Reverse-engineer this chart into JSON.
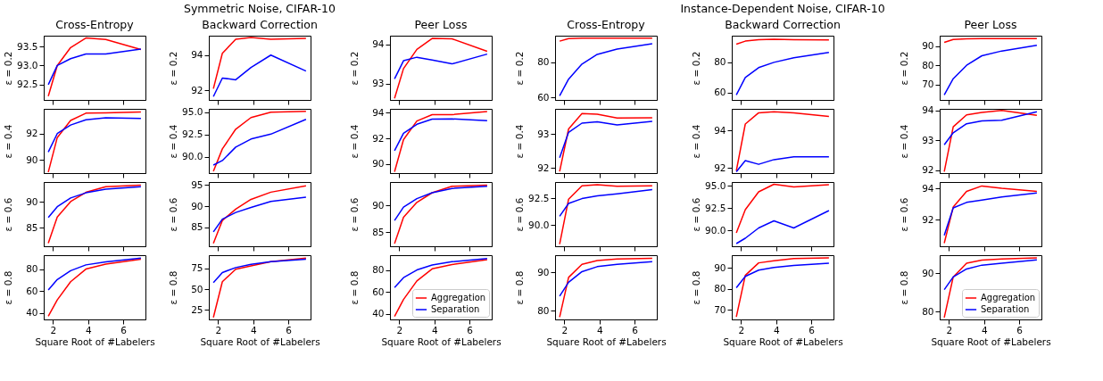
{
  "chart_data": [
    {
      "type": "line",
      "title": "Cross-Entropy",
      "ylabel": "ε = 0.2",
      "x": [
        1.73,
        2.24,
        3,
        3.87,
        5,
        7
      ],
      "xlim": [
        1.47,
        7.26
      ],
      "xticks": [
        2,
        4,
        6
      ],
      "ylim": [
        92.1,
        93.78
      ],
      "yticks": [
        92.5,
        {
          "value": 93,
          "label": "93.0"
        },
        93.5
      ],
      "tick_labels": "y",
      "line_style": "solid",
      "series": [
        {
          "color": "#ff0000",
          "values": [
            92.2,
            93.0,
            93.47,
            93.72,
            93.68,
            93.42
          ]
        },
        {
          "color": "#0000ff",
          "values": [
            92.5,
            93.0,
            93.18,
            93.3,
            93.3,
            93.43
          ]
        }
      ]
    },
    {
      "type": "line",
      "title": "Backward Correction",
      "annotations": [
        "Symmetric Noise, CIFAR-10"
      ],
      "ylabel": "ε = 0.2",
      "x": [
        1.73,
        2.24,
        3,
        3.87,
        5,
        7
      ],
      "xlim": [
        1.47,
        7.26
      ],
      "xticks": [
        2,
        4,
        6
      ],
      "ylim": [
        91.46,
        95.1
      ],
      "yticks": [
        92,
        94
      ],
      "tick_labels": "y",
      "line_style": "solid",
      "series": [
        {
          "color": "#ff0000",
          "values": [
            92.1,
            94.1,
            94.9,
            95.0,
            94.9,
            94.95
          ]
        },
        {
          "color": "#0000ff",
          "values": [
            91.65,
            92.7,
            92.6,
            93.3,
            94.0,
            93.1
          ]
        }
      ]
    },
    {
      "type": "line",
      "title": "Peer Loss",
      "ylabel": "ε = 0.2",
      "x": [
        1.73,
        2.24,
        3,
        3.87,
        5,
        7
      ],
      "xlim": [
        1.47,
        7.26
      ],
      "xticks": [
        2,
        4,
        6
      ],
      "ylim": [
        92.58,
        94.22
      ],
      "yticks": [
        93,
        94
      ],
      "tick_labels": "y",
      "line_style": "solid",
      "series": [
        {
          "color": "#ff0000",
          "values": [
            92.62,
            93.38,
            93.87,
            94.15,
            94.14,
            93.82
          ]
        },
        {
          "color": "#0000ff",
          "values": [
            93.12,
            93.58,
            93.67,
            93.6,
            93.5,
            93.75
          ]
        }
      ]
    },
    {
      "type": "line",
      "title": "Cross-Entropy",
      "ylabel": "ε = 0.2",
      "x": [
        1.73,
        2.24,
        3,
        3.87,
        5,
        7
      ],
      "xlim": [
        1.47,
        7.26
      ],
      "xticks": [
        2,
        4,
        6
      ],
      "ylim": [
        58.7,
        95.1
      ],
      "yticks": [
        60,
        80
      ],
      "tick_labels": "y",
      "line_style": "solid",
      "series": [
        {
          "color": "#ff0000",
          "values": [
            92,
            93.5,
            93.7,
            93.7,
            93.7,
            93.7
          ]
        },
        {
          "color": "#0000ff",
          "values": [
            61,
            70.5,
            79,
            84.5,
            87.5,
            90.5
          ]
        }
      ]
    },
    {
      "type": "line",
      "title": "Backward Correction",
      "annotations": [
        "Instance-Dependent Noise, CIFAR-10"
      ],
      "ylabel": "ε = 0.2",
      "x": [
        1.73,
        2.24,
        3,
        3.87,
        5,
        7
      ],
      "xlim": [
        1.47,
        7.26
      ],
      "xticks": [
        2,
        4,
        6
      ],
      "ylim": [
        55.2,
        97.6
      ],
      "yticks": [
        60,
        80
      ],
      "tick_labels": "y",
      "line_style": "solid",
      "series": [
        {
          "color": "#ff0000",
          "values": [
            92,
            94,
            95,
            95.3,
            95,
            94.8
          ]
        },
        {
          "color": "#0000ff",
          "values": [
            58.5,
            70,
            76.5,
            80,
            83,
            86.5
          ]
        }
      ]
    },
    {
      "type": "line",
      "title": "Peer Loss",
      "ylabel": "ε = 0.2",
      "x": [
        1.73,
        2.24,
        3,
        3.87,
        5,
        7
      ],
      "xlim": [
        1.47,
        7.26
      ],
      "xticks": [
        2,
        4,
        6
      ],
      "ylim": [
        61.9,
        95.5
      ],
      "yticks": [
        70,
        80,
        90
      ],
      "tick_labels": "y",
      "line_style": "solid",
      "series": [
        {
          "color": "#ff0000",
          "values": [
            92,
            93.5,
            93.9,
            94,
            94,
            94
          ]
        },
        {
          "color": "#0000ff",
          "values": [
            64.5,
            73,
            80,
            85,
            87.5,
            90.5
          ]
        }
      ]
    },
    {
      "type": "line",
      "ylabel": "ε = 0.4",
      "x": [
        1.73,
        2.24,
        3,
        3.87,
        5,
        7
      ],
      "xlim": [
        1.47,
        7.26
      ],
      "xticks": [
        2,
        4,
        6
      ],
      "ylim": [
        89.0,
        93.88
      ],
      "yticks": [
        90,
        92
      ],
      "tick_labels": "y",
      "line_style": "solid",
      "series": [
        {
          "color": "#ff0000",
          "values": [
            89.08,
            91.7,
            93.0,
            93.55,
            93.57,
            93.65
          ]
        },
        {
          "color": "#0000ff",
          "values": [
            90.6,
            92.0,
            92.65,
            93.05,
            93.2,
            93.15
          ]
        }
      ]
    },
    {
      "type": "line",
      "ylabel": "ε = 0.4",
      "x": [
        1.73,
        2.24,
        3,
        3.87,
        5,
        7
      ],
      "xlim": [
        1.47,
        7.26
      ],
      "xticks": [
        2,
        4,
        6
      ],
      "ylim": [
        88.2,
        95.37
      ],
      "yticks": [
        {
          "value": 90,
          "label": "90.0"
        },
        92.5,
        {
          "value": 95,
          "label": "95.0"
        }
      ],
      "tick_labels": "y",
      "line_style": "solid",
      "series": [
        {
          "color": "#ff0000",
          "values": [
            88.4,
            90.9,
            93.1,
            94.4,
            95.0,
            95.1
          ]
        },
        {
          "color": "#0000ff",
          "values": [
            89.1,
            89.6,
            91.1,
            92.0,
            92.55,
            94.2
          ]
        }
      ]
    },
    {
      "type": "line",
      "ylabel": "ε = 0.4",
      "x": [
        1.73,
        2.24,
        3,
        3.87,
        5,
        7
      ],
      "xlim": [
        1.47,
        7.26
      ],
      "xticks": [
        2,
        4,
        6
      ],
      "ylim": [
        89.3,
        94.3
      ],
      "yticks": [
        90,
        92,
        94
      ],
      "tick_labels": "y",
      "line_style": "solid",
      "series": [
        {
          "color": "#ff0000",
          "values": [
            89.4,
            91.9,
            93.35,
            93.85,
            93.85,
            94.1
          ]
        },
        {
          "color": "#0000ff",
          "values": [
            91.05,
            92.4,
            93.1,
            93.5,
            93.52,
            93.38
          ]
        }
      ]
    },
    {
      "type": "line",
      "ylabel": "ε = 0.4",
      "x": [
        1.73,
        2.24,
        3,
        3.87,
        5,
        7
      ],
      "xlim": [
        1.47,
        7.26
      ],
      "xticks": [
        2,
        4,
        6
      ],
      "ylim": [
        91.85,
        93.74
      ],
      "yticks": [
        92,
        93
      ],
      "tick_labels": "y",
      "line_style": "solid",
      "series": [
        {
          "color": "#ff0000",
          "values": [
            91.9,
            93.15,
            93.6,
            93.58,
            93.47,
            93.48
          ]
        },
        {
          "color": "#0000ff",
          "values": [
            92.3,
            93.05,
            93.32,
            93.36,
            93.27,
            93.37
          ]
        }
      ]
    },
    {
      "type": "line",
      "ylabel": "ε = 0.4",
      "x": [
        1.73,
        2.24,
        3,
        3.87,
        5,
        7
      ],
      "xlim": [
        1.47,
        7.26
      ],
      "xticks": [
        2,
        4,
        6
      ],
      "ylim": [
        91.73,
        95.16
      ],
      "yticks": [
        92,
        94
      ],
      "tick_labels": "y",
      "line_style": "solid",
      "series": [
        {
          "color": "#ff0000",
          "values": [
            91.85,
            94.35,
            94.95,
            95.0,
            94.95,
            94.75
          ]
        },
        {
          "color": "#0000ff",
          "values": [
            91.8,
            92.4,
            92.2,
            92.45,
            92.6,
            92.6
          ]
        }
      ]
    },
    {
      "type": "line",
      "ylabel": "ε = 0.4",
      "x": [
        1.73,
        2.24,
        3,
        3.87,
        5,
        7
      ],
      "xlim": [
        1.47,
        7.26
      ],
      "xticks": [
        2,
        4,
        6
      ],
      "ylim": [
        91.9,
        94.05
      ],
      "yticks": [
        92,
        93,
        94
      ],
      "tick_labels": "y",
      "line_style": "solid",
      "series": [
        {
          "color": "#ff0000",
          "values": [
            91.95,
            93.45,
            93.85,
            93.93,
            94.0,
            93.83
          ]
        },
        {
          "color": "#0000ff",
          "values": [
            92.85,
            93.25,
            93.55,
            93.65,
            93.67,
            93.95
          ]
        }
      ]
    },
    {
      "type": "line",
      "ylabel": "ε = 0.6",
      "x": [
        1.73,
        2.24,
        3,
        3.87,
        5,
        7
      ],
      "xlim": [
        1.47,
        7.26
      ],
      "xticks": [
        2,
        4,
        6
      ],
      "ylim": [
        81.4,
        93.9
      ],
      "yticks": [
        85,
        90
      ],
      "tick_labels": "y",
      "line_style": "solid",
      "series": [
        {
          "color": "#ff0000",
          "values": [
            82.0,
            87.1,
            90.1,
            91.9,
            93.0,
            93.3
          ]
        },
        {
          "color": "#0000ff",
          "values": [
            87.0,
            89.1,
            90.8,
            91.8,
            92.5,
            93.0
          ]
        }
      ]
    },
    {
      "type": "line",
      "ylabel": "ε = 0.6",
      "x": [
        1.73,
        2.24,
        3,
        3.87,
        5,
        7
      ],
      "xlim": [
        1.47,
        7.26
      ],
      "xticks": [
        2,
        4,
        6
      ],
      "ylim": [
        80.5,
        95.7
      ],
      "yticks": [
        85,
        90,
        95
      ],
      "tick_labels": "y",
      "line_style": "solid",
      "series": [
        {
          "color": "#ff0000",
          "values": [
            81.2,
            86.6,
            89.3,
            91.6,
            93.3,
            94.8
          ]
        },
        {
          "color": "#0000ff",
          "values": [
            83.9,
            86.9,
            88.5,
            89.7,
            91.1,
            92.1
          ]
        }
      ]
    },
    {
      "type": "line",
      "ylabel": "ε = 0.6",
      "x": [
        1.73,
        2.24,
        3,
        3.87,
        5,
        7
      ],
      "xlim": [
        1.47,
        7.26
      ],
      "xticks": [
        2,
        4,
        6
      ],
      "ylim": [
        82.4,
        94.4
      ],
      "yticks": [
        85,
        90
      ],
      "tick_labels": "y",
      "line_style": "solid",
      "series": [
        {
          "color": "#ff0000",
          "values": [
            82.9,
            87.8,
            90.6,
            92.4,
            93.6,
            93.8
          ]
        },
        {
          "color": "#0000ff",
          "values": [
            87.2,
            89.7,
            91.3,
            92.4,
            93.2,
            93.6
          ]
        }
      ]
    },
    {
      "type": "line",
      "ylabel": "ε = 0.6",
      "x": [
        1.73,
        2.24,
        3,
        3.87,
        5,
        7
      ],
      "xlim": [
        1.47,
        7.26
      ],
      "xticks": [
        2,
        4,
        6
      ],
      "ylim": [
        88.0,
        94.0
      ],
      "yticks": [
        {
          "value": 90,
          "label": "90.0"
        },
        92.5
      ],
      "tick_labels": "y",
      "line_style": "solid",
      "series": [
        {
          "color": "#ff0000",
          "values": [
            88.2,
            92.4,
            93.65,
            93.75,
            93.6,
            93.65
          ]
        },
        {
          "color": "#0000ff",
          "values": [
            90.8,
            92.0,
            92.45,
            92.7,
            92.9,
            93.3
          ]
        }
      ]
    },
    {
      "type": "line",
      "ylabel": "ε = 0.6",
      "x": [
        1.73,
        2.24,
        3,
        3.87,
        5,
        7
      ],
      "xlim": [
        1.47,
        7.26
      ],
      "xticks": [
        2,
        4,
        6
      ],
      "ylim": [
        88.2,
        95.4
      ],
      "yticks": [
        {
          "value": 90,
          "label": "90.0"
        },
        92.5,
        {
          "value": 95,
          "label": "95.0"
        }
      ],
      "tick_labels": "y",
      "line_style": "solid",
      "series": [
        {
          "color": "#ff0000",
          "values": [
            89.7,
            92.3,
            94.3,
            95.15,
            94.85,
            95.1
          ]
        },
        {
          "color": "#0000ff",
          "values": [
            88.5,
            89.1,
            90.25,
            91.05,
            90.25,
            92.2
          ]
        }
      ]
    },
    {
      "type": "line",
      "ylabel": "ε = 0.6",
      "x": [
        1.73,
        2.24,
        3,
        3.87,
        5,
        7
      ],
      "xlim": [
        1.47,
        7.26
      ],
      "xticks": [
        2,
        4,
        6
      ],
      "ylim": [
        90.3,
        94.4
      ],
      "yticks": [
        92,
        94
      ],
      "tick_labels": "y",
      "line_style": "solid",
      "series": [
        {
          "color": "#ff0000",
          "values": [
            90.5,
            92.8,
            93.8,
            94.15,
            94.0,
            93.8
          ]
        },
        {
          "color": "#0000ff",
          "values": [
            91.0,
            92.75,
            93.1,
            93.25,
            93.45,
            93.7
          ]
        }
      ]
    },
    {
      "type": "line",
      "ylabel": "ε = 0.8",
      "xlabel": "Square Root of #Labelers",
      "x": [
        1.73,
        2.24,
        3,
        3.87,
        5,
        7
      ],
      "xlim": [
        1.47,
        7.26
      ],
      "xticks": [
        2,
        4,
        6
      ],
      "ylim": [
        34.3,
        92.6
      ],
      "yticks": [
        40,
        60,
        80
      ],
      "line_style": "solid",
      "series": [
        {
          "color": "#ff0000",
          "values": [
            37.2,
            52,
            68.5,
            80,
            84.5,
            89
          ]
        },
        {
          "color": "#0000ff",
          "values": [
            61,
            70.5,
            78.5,
            83.8,
            86.5,
            90
          ]
        }
      ]
    },
    {
      "type": "line",
      "ylabel": "ε = 0.8",
      "xlabel": "Square Root of #Labelers",
      "x": [
        1.73,
        2.24,
        3,
        3.87,
        5,
        7
      ],
      "xlim": [
        1.47,
        7.26
      ],
      "xticks": [
        2,
        4,
        6
      ],
      "ylim": [
        13.6,
        90.9
      ],
      "yticks": [
        25,
        50,
        75
      ],
      "line_style": "solid",
      "series": [
        {
          "color": "#ff0000",
          "values": [
            16,
            59,
            74,
            78,
            83,
            87.5
          ]
        },
        {
          "color": "#0000ff",
          "values": [
            58,
            70,
            76,
            80,
            83,
            86
          ]
        }
      ]
    },
    {
      "type": "line",
      "ylabel": "ε = 0.8",
      "xlabel": "Square Root of #Labelers",
      "x": [
        1.73,
        2.24,
        3,
        3.87,
        5,
        7
      ],
      "xlim": [
        1.47,
        7.26
      ],
      "xticks": [
        2,
        4,
        6
      ],
      "ylim": [
        34.8,
        93.5
      ],
      "yticks": [
        40,
        60,
        80
      ],
      "line_style": "solid",
      "legend": "bottom right",
      "series": [
        {
          "name": "Aggregation",
          "color": "#ff0000",
          "values": [
            37.5,
            53,
            70,
            81,
            85,
            89.5
          ]
        },
        {
          "name": "Separation",
          "color": "#0000ff",
          "values": [
            64,
            73,
            80,
            84.5,
            87.5,
            90.5
          ]
        }
      ]
    },
    {
      "type": "line",
      "ylabel": "ε = 0.8",
      "xlabel": "Square Root of #Labelers",
      "x": [
        1.73,
        2.24,
        3,
        3.87,
        5,
        7
      ],
      "xlim": [
        1.47,
        7.26
      ],
      "xticks": [
        2,
        4,
        6
      ],
      "ylim": [
        77.7,
        94.5
      ],
      "yticks": [
        80,
        90
      ],
      "line_style": "solid",
      "series": [
        {
          "color": "#ff0000",
          "values": [
            78.3,
            88.7,
            92.1,
            93.1,
            93.5,
            93.7
          ]
        },
        {
          "color": "#0000ff",
          "values": [
            83.8,
            87.4,
            90.2,
            91.5,
            92.1,
            92.8
          ]
        }
      ]
    },
    {
      "type": "line",
      "ylabel": "ε = 0.8",
      "xlabel": "Square Root of #Labelers",
      "x": [
        1.73,
        2.24,
        3,
        3.87,
        5,
        7
      ],
      "xlim": [
        1.47,
        7.26
      ],
      "xticks": [
        2,
        4,
        6
      ],
      "ylim": [
        65.3,
        96.2
      ],
      "yticks": [
        70,
        80,
        90
      ],
      "line_style": "solid",
      "series": [
        {
          "color": "#ff0000",
          "values": [
            66.5,
            86.5,
            92.5,
            93.5,
            94.6,
            94.9
          ]
        },
        {
          "color": "#0000ff",
          "values": [
            80.5,
            86,
            89,
            90.3,
            91.3,
            92.3
          ]
        }
      ]
    },
    {
      "type": "line",
      "ylabel": "ε = 0.8",
      "xlabel": "Square Root of #Labelers",
      "x": [
        1.73,
        2.24,
        3,
        3.87,
        5,
        7
      ],
      "xlim": [
        1.47,
        7.26
      ],
      "xticks": [
        2,
        4,
        6
      ],
      "ylim": [
        77.9,
        94.7
      ],
      "yticks": [
        80,
        90
      ],
      "line_style": "solid",
      "legend": "bottom right",
      "series": [
        {
          "name": "Aggregation",
          "color": "#ff0000",
          "values": [
            78.4,
            89,
            92.6,
            93.4,
            93.7,
            94
          ]
        },
        {
          "name": "Separation",
          "color": "#0000ff",
          "values": [
            85.7,
            89.0,
            91.1,
            92.1,
            92.6,
            93.5
          ]
        }
      ]
    }
  ]
}
